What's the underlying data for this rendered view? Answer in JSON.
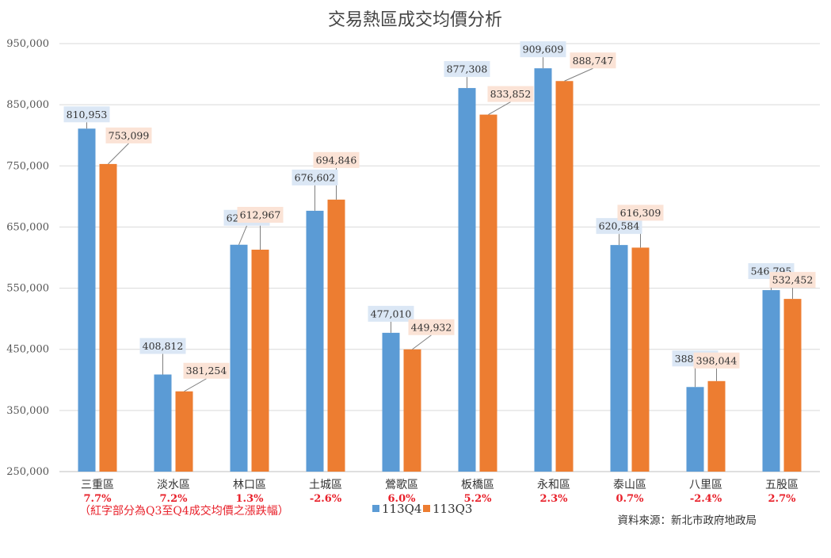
{
  "chart_data": {
    "type": "bar",
    "title": "交易熱區成交均價分析",
    "categories": [
      "三重區",
      "淡水區",
      "林口區",
      "土城區",
      "鶯歌區",
      "板橋區",
      "永和區",
      "泰山區",
      "八里區",
      "五股區"
    ],
    "series": [
      {
        "name": "113Q4",
        "color": "#5b9bd5",
        "label_bg": "#dbe7f5",
        "values": [
          810953,
          408812,
          621043,
          676602,
          477010,
          877308,
          909609,
          620584,
          388360,
          546795
        ],
        "labels": [
          "810,953",
          "408,812",
          "621,043",
          "676,602",
          "477,010",
          "877,308",
          "909,609",
          "620,584",
          "388,360",
          "546,795"
        ]
      },
      {
        "name": "113Q3",
        "color": "#ed7d31",
        "label_bg": "#fbe3d6",
        "values": [
          753099,
          381254,
          612967,
          694846,
          449932,
          833852,
          888747,
          616309,
          398044,
          532452
        ],
        "labels": [
          "753,099",
          "381,254",
          "612,967",
          "694,846",
          "449,932",
          "833,852",
          "888,747",
          "616,309",
          "398,044",
          "532,452"
        ]
      }
    ],
    "changes": [
      "7.7%",
      "7.2%",
      "1.3%",
      "-2.6%",
      "6.0%",
      "5.2%",
      "2.3%",
      "0.7%",
      "-2.4%",
      "2.7%"
    ],
    "ylim": [
      250000,
      950000
    ],
    "yticks": [
      250000,
      350000,
      450000,
      550000,
      650000,
      750000,
      850000,
      950000
    ],
    "ytick_labels": [
      "250,000",
      "350,000",
      "450,000",
      "550,000",
      "650,000",
      "750,000",
      "850,000",
      "950,000"
    ],
    "grid": true,
    "legend_position": "bottom-center",
    "note": "（紅字部分為Q3至Q4成交均價之漲跌幅）",
    "source": "資料來源：新北市政府地政局"
  }
}
